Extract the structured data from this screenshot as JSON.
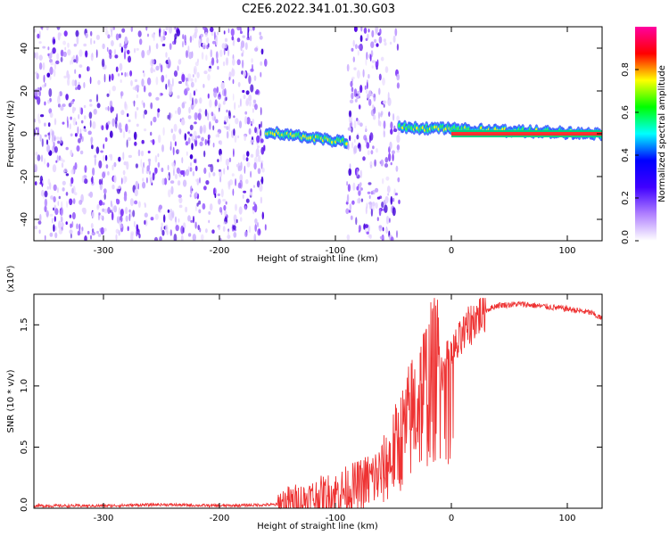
{
  "figure": {
    "title": "C2E6.2022.341.01.30.G03"
  },
  "chart_data": [
    {
      "type": "heatmap",
      "xlabel": "Height of straight line (km)",
      "ylabel": "Frequency (Hz)",
      "xlim": [
        -360,
        130
      ],
      "ylim": [
        -50,
        50
      ],
      "x_ticks": [
        -300,
        -200,
        -100,
        0,
        100
      ],
      "y_ticks": [
        -40,
        -20,
        0,
        20,
        40
      ],
      "colorbar": {
        "label": "Normalized spectral amplitude",
        "range": [
          0,
          1
        ],
        "ticks": [
          "0.0",
          "0.2",
          "0.4",
          "0.6",
          "0.8"
        ],
        "colors": [
          "#ffffff",
          "#b080ff",
          "#4000ff",
          "#0000ff",
          "#00ffff",
          "#00ff00",
          "#ffff00",
          "#ff0000",
          "#ff00a0"
        ]
      },
      "regions": [
        {
          "x": [
            -360,
            -160
          ],
          "kind": "noise"
        },
        {
          "x": [
            -160,
            -90
          ],
          "kind": "signal",
          "freq_start": 1,
          "freq_end": -4
        },
        {
          "x": [
            -90,
            -45
          ],
          "kind": "noise"
        },
        {
          "x": [
            -45,
            130
          ],
          "kind": "signal",
          "freq_start": 3,
          "freq_end": 0
        }
      ]
    },
    {
      "type": "line",
      "xlabel": "Height of straight line (km)",
      "ylabel": "SNR (10 * v/v)",
      "multiplier": "(x10⁴)",
      "xlim": [
        -360,
        130
      ],
      "ylim": [
        0,
        1.75
      ],
      "x_ticks": [
        -300,
        -200,
        -100,
        0,
        100
      ],
      "y_ticks": [
        "0.0",
        "0.5",
        "1.0",
        "1.5"
      ],
      "series": [
        {
          "color": "#ee3333",
          "x": [
            -360,
            -300,
            -250,
            -200,
            -150,
            -130,
            -100,
            -80,
            -60,
            -50,
            -40,
            -30,
            -20,
            -10,
            0,
            5,
            10,
            20,
            30,
            40,
            60,
            80,
            100,
            120,
            130
          ],
          "y": [
            0.02,
            0.02,
            0.03,
            0.02,
            0.03,
            0.06,
            0.12,
            0.18,
            0.28,
            0.45,
            0.62,
            0.85,
            1.0,
            1.1,
            1.25,
            1.32,
            1.4,
            1.55,
            1.62,
            1.66,
            1.67,
            1.65,
            1.63,
            1.6,
            1.55
          ]
        }
      ]
    }
  ]
}
